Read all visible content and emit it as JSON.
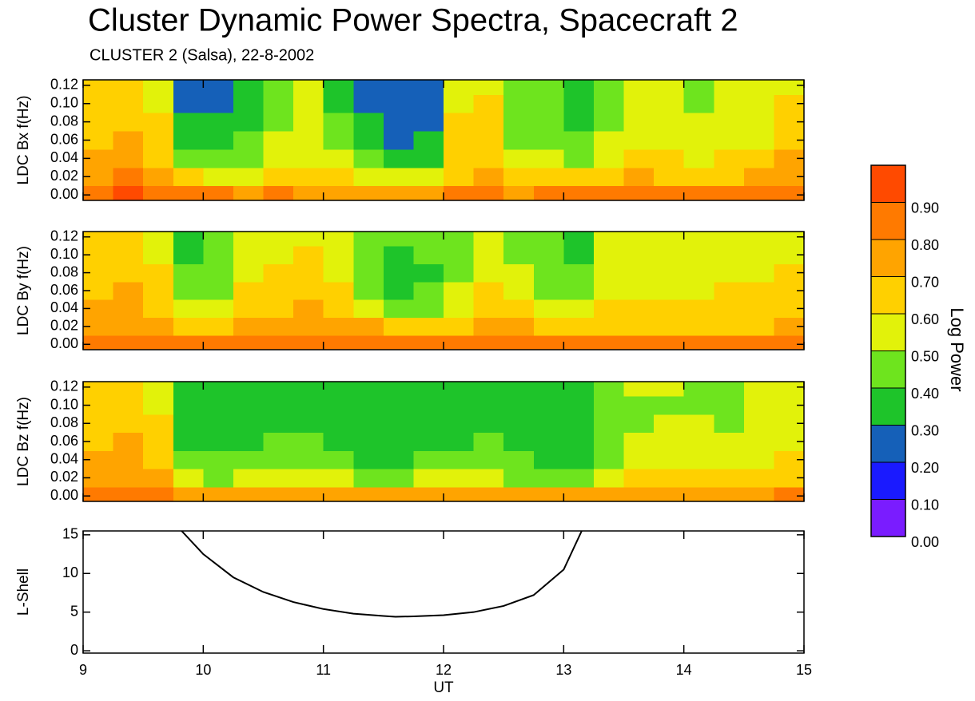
{
  "title": "Cluster Dynamic Power Spectra, Spacecraft 2",
  "subtitle": "CLUSTER 2 (Salsa), 22-8-2002",
  "colorbar": {
    "label": "Log Power",
    "zlim": [
      0,
      1
    ],
    "zticks": [
      {
        "value": 0,
        "label": "0.00"
      },
      {
        "value": 0.1,
        "label": "0.10"
      },
      {
        "value": 0.2,
        "label": "0.20"
      },
      {
        "value": 0.3,
        "label": "0.30"
      },
      {
        "value": 0.4,
        "label": "0.40"
      },
      {
        "value": 0.5,
        "label": "0.50"
      },
      {
        "value": 0.6,
        "label": "0.60"
      },
      {
        "value": 0.7,
        "label": "0.70"
      },
      {
        "value": 0.8,
        "label": "0.80"
      },
      {
        "value": 0.9,
        "label": "0.90"
      }
    ],
    "colors": [
      "#7a1cff",
      "#1a1aff",
      "#1560b8",
      "#1ec42a",
      "#6ee41e",
      "#e2f20a",
      "#ffd000",
      "#ffa400",
      "#ff7a00",
      "#ff4a00"
    ]
  },
  "chart_data": [
    {
      "type": "heatmap",
      "ylabel": "LDC Bx f(Hz)",
      "xlim": [
        9,
        15
      ],
      "xticks": [
        9,
        10,
        11,
        12,
        13,
        14,
        15
      ],
      "ylim": [
        -0.006,
        0.126
      ],
      "yticks": [
        {
          "value": 0,
          "label": "0.00"
        },
        {
          "value": 0.02,
          "label": "0.02"
        },
        {
          "value": 0.04,
          "label": "0.04"
        },
        {
          "value": 0.06,
          "label": "0.06"
        },
        {
          "value": 0.08,
          "label": "0.08"
        },
        {
          "value": 0.1,
          "label": "0.10"
        },
        {
          "value": 0.12,
          "label": "0.12"
        }
      ],
      "xbins": [
        9,
        9.25,
        9.5,
        9.75,
        10,
        10.25,
        10.5,
        10.75,
        11,
        11.25,
        11.5,
        11.75,
        12,
        12.25,
        12.5,
        12.75,
        13,
        13.25,
        13.5,
        13.75,
        14,
        14.25,
        14.5,
        14.75,
        15
      ],
      "ybins": [
        -0.006,
        0.01,
        0.03,
        0.05,
        0.07,
        0.09,
        0.11,
        0.126
      ],
      "values": [
        [
          0.88,
          0.9,
          0.85,
          0.82,
          0.8,
          0.78,
          0.8,
          0.78,
          0.75,
          0.78,
          0.75,
          0.78,
          0.8,
          0.82,
          0.78,
          0.8,
          0.82,
          0.8,
          0.85,
          0.82,
          0.8,
          0.82,
          0.85,
          0.88
        ],
        [
          0.78,
          0.8,
          0.72,
          0.6,
          0.55,
          0.55,
          0.6,
          0.62,
          0.6,
          0.55,
          0.5,
          0.52,
          0.65,
          0.7,
          0.6,
          0.6,
          0.62,
          0.62,
          0.7,
          0.68,
          0.65,
          0.68,
          0.7,
          0.75
        ],
        [
          0.72,
          0.75,
          0.65,
          0.45,
          0.4,
          0.45,
          0.55,
          0.55,
          0.5,
          0.4,
          0.3,
          0.38,
          0.6,
          0.65,
          0.5,
          0.5,
          0.45,
          0.55,
          0.62,
          0.6,
          0.58,
          0.6,
          0.62,
          0.7
        ],
        [
          0.68,
          0.7,
          0.62,
          0.38,
          0.35,
          0.42,
          0.5,
          0.55,
          0.45,
          0.35,
          0.25,
          0.32,
          0.6,
          0.62,
          0.45,
          0.45,
          0.4,
          0.5,
          0.58,
          0.55,
          0.52,
          0.55,
          0.58,
          0.65
        ],
        [
          0.65,
          0.68,
          0.6,
          0.32,
          0.3,
          0.38,
          0.48,
          0.55,
          0.42,
          0.3,
          0.22,
          0.28,
          0.6,
          0.6,
          0.42,
          0.42,
          0.38,
          0.48,
          0.55,
          0.52,
          0.5,
          0.52,
          0.55,
          0.62
        ],
        [
          0.62,
          0.65,
          0.58,
          0.28,
          0.28,
          0.35,
          0.45,
          0.55,
          0.38,
          0.28,
          0.22,
          0.28,
          0.58,
          0.6,
          0.42,
          0.4,
          0.38,
          0.48,
          0.55,
          0.5,
          0.48,
          0.5,
          0.52,
          0.6
        ],
        [
          0.6,
          0.62,
          0.58,
          0.29,
          0.28,
          0.36,
          0.45,
          0.52,
          0.38,
          0.29,
          0.24,
          0.29,
          0.56,
          0.58,
          0.42,
          0.4,
          0.38,
          0.46,
          0.55,
          0.5,
          0.48,
          0.5,
          0.52,
          0.58
        ]
      ]
    },
    {
      "type": "heatmap",
      "ylabel": "LDC By f(Hz)",
      "xlim": [
        9,
        15
      ],
      "xticks": [
        9,
        10,
        11,
        12,
        13,
        14,
        15
      ],
      "ylim": [
        -0.006,
        0.126
      ],
      "yticks": [
        {
          "value": 0,
          "label": "0.00"
        },
        {
          "value": 0.02,
          "label": "0.02"
        },
        {
          "value": 0.04,
          "label": "0.04"
        },
        {
          "value": 0.06,
          "label": "0.06"
        },
        {
          "value": 0.08,
          "label": "0.08"
        },
        {
          "value": 0.1,
          "label": "0.10"
        },
        {
          "value": 0.12,
          "label": "0.12"
        }
      ],
      "xbins": [
        9,
        9.25,
        9.5,
        9.75,
        10,
        10.25,
        10.5,
        10.75,
        11,
        11.25,
        11.5,
        11.75,
        12,
        12.25,
        12.5,
        12.75,
        13,
        13.25,
        13.5,
        13.75,
        14,
        14.25,
        14.5,
        14.75,
        15
      ],
      "ybins": [
        -0.006,
        0.01,
        0.03,
        0.05,
        0.07,
        0.09,
        0.11,
        0.126
      ],
      "values": [
        [
          0.88,
          0.88,
          0.85,
          0.85,
          0.82,
          0.85,
          0.88,
          0.88,
          0.85,
          0.85,
          0.82,
          0.82,
          0.8,
          0.82,
          0.8,
          0.82,
          0.82,
          0.82,
          0.8,
          0.8,
          0.8,
          0.82,
          0.82,
          0.85
        ],
        [
          0.75,
          0.78,
          0.72,
          0.62,
          0.68,
          0.75,
          0.78,
          0.78,
          0.78,
          0.72,
          0.68,
          0.68,
          0.68,
          0.72,
          0.7,
          0.68,
          0.65,
          0.68,
          0.65,
          0.65,
          0.65,
          0.68,
          0.68,
          0.7
        ],
        [
          0.7,
          0.72,
          0.68,
          0.5,
          0.55,
          0.65,
          0.68,
          0.7,
          0.68,
          0.55,
          0.45,
          0.48,
          0.55,
          0.62,
          0.6,
          0.5,
          0.5,
          0.6,
          0.6,
          0.6,
          0.6,
          0.62,
          0.62,
          0.65
        ],
        [
          0.68,
          0.7,
          0.62,
          0.42,
          0.48,
          0.6,
          0.62,
          0.65,
          0.6,
          0.45,
          0.38,
          0.4,
          0.5,
          0.6,
          0.55,
          0.45,
          0.42,
          0.55,
          0.58,
          0.58,
          0.58,
          0.6,
          0.6,
          0.62
        ],
        [
          0.65,
          0.68,
          0.6,
          0.4,
          0.45,
          0.55,
          0.6,
          0.62,
          0.55,
          0.4,
          0.35,
          0.38,
          0.48,
          0.58,
          0.5,
          0.42,
          0.4,
          0.52,
          0.55,
          0.55,
          0.55,
          0.58,
          0.58,
          0.6
        ],
        [
          0.62,
          0.65,
          0.58,
          0.38,
          0.42,
          0.52,
          0.58,
          0.6,
          0.52,
          0.42,
          0.38,
          0.4,
          0.48,
          0.55,
          0.48,
          0.42,
          0.38,
          0.5,
          0.55,
          0.55,
          0.55,
          0.55,
          0.55,
          0.58
        ],
        [
          0.6,
          0.62,
          0.58,
          0.38,
          0.42,
          0.5,
          0.55,
          0.58,
          0.5,
          0.42,
          0.4,
          0.42,
          0.48,
          0.55,
          0.48,
          0.42,
          0.38,
          0.5,
          0.55,
          0.55,
          0.52,
          0.55,
          0.55,
          0.58
        ]
      ]
    },
    {
      "type": "heatmap",
      "ylabel": "LDC Bz f(Hz)",
      "xlim": [
        9,
        15
      ],
      "xticks": [
        9,
        10,
        11,
        12,
        13,
        14,
        15
      ],
      "ylim": [
        -0.006,
        0.126
      ],
      "yticks": [
        {
          "value": 0,
          "label": "0.00"
        },
        {
          "value": 0.02,
          "label": "0.02"
        },
        {
          "value": 0.04,
          "label": "0.04"
        },
        {
          "value": 0.06,
          "label": "0.06"
        },
        {
          "value": 0.08,
          "label": "0.08"
        },
        {
          "value": 0.1,
          "label": "0.10"
        },
        {
          "value": 0.12,
          "label": "0.12"
        }
      ],
      "xbins": [
        9,
        9.25,
        9.5,
        9.75,
        10,
        10.25,
        10.5,
        10.75,
        11,
        11.25,
        11.5,
        11.75,
        12,
        12.25,
        12.5,
        12.75,
        13,
        13.25,
        13.5,
        13.75,
        14,
        14.25,
        14.5,
        14.75,
        15
      ],
      "ybins": [
        -0.006,
        0.01,
        0.03,
        0.05,
        0.07,
        0.09,
        0.11,
        0.126
      ],
      "values": [
        [
          0.85,
          0.88,
          0.82,
          0.72,
          0.72,
          0.75,
          0.78,
          0.75,
          0.75,
          0.72,
          0.72,
          0.75,
          0.75,
          0.78,
          0.75,
          0.72,
          0.72,
          0.75,
          0.75,
          0.75,
          0.75,
          0.75,
          0.78,
          0.8
        ],
        [
          0.75,
          0.78,
          0.7,
          0.5,
          0.48,
          0.5,
          0.55,
          0.52,
          0.5,
          0.45,
          0.45,
          0.5,
          0.5,
          0.55,
          0.48,
          0.42,
          0.45,
          0.5,
          0.6,
          0.6,
          0.6,
          0.6,
          0.62,
          0.65
        ],
        [
          0.7,
          0.72,
          0.65,
          0.42,
          0.4,
          0.42,
          0.45,
          0.42,
          0.4,
          0.38,
          0.38,
          0.4,
          0.42,
          0.45,
          0.42,
          0.35,
          0.38,
          0.42,
          0.55,
          0.55,
          0.55,
          0.55,
          0.55,
          0.6
        ],
        [
          0.68,
          0.7,
          0.62,
          0.38,
          0.35,
          0.38,
          0.4,
          0.4,
          0.38,
          0.35,
          0.35,
          0.38,
          0.38,
          0.4,
          0.38,
          0.35,
          0.35,
          0.4,
          0.5,
          0.52,
          0.52,
          0.5,
          0.52,
          0.58
        ],
        [
          0.65,
          0.68,
          0.6,
          0.35,
          0.35,
          0.36,
          0.38,
          0.38,
          0.36,
          0.32,
          0.33,
          0.35,
          0.36,
          0.38,
          0.36,
          0.35,
          0.36,
          0.4,
          0.48,
          0.5,
          0.5,
          0.48,
          0.5,
          0.55
        ],
        [
          0.62,
          0.65,
          0.58,
          0.35,
          0.34,
          0.35,
          0.36,
          0.38,
          0.36,
          0.32,
          0.32,
          0.34,
          0.36,
          0.36,
          0.36,
          0.35,
          0.36,
          0.4,
          0.48,
          0.48,
          0.48,
          0.48,
          0.5,
          0.55
        ],
        [
          0.62,
          0.65,
          0.58,
          0.32,
          0.32,
          0.34,
          0.35,
          0.36,
          0.35,
          0.3,
          0.3,
          0.32,
          0.34,
          0.35,
          0.35,
          0.35,
          0.35,
          0.4,
          0.5,
          0.5,
          0.48,
          0.48,
          0.5,
          0.55
        ]
      ]
    },
    {
      "type": "line",
      "ylabel": "L-Shell",
      "xlabel": "UT",
      "xlim": [
        9,
        15
      ],
      "xticks": [
        9,
        10,
        11,
        12,
        13,
        14,
        15
      ],
      "ylim": [
        -0.3,
        15.5
      ],
      "yticks": [
        0,
        5,
        10,
        15
      ],
      "color": "#000000",
      "x": [
        9.82,
        10,
        10.25,
        10.5,
        10.75,
        11,
        11.25,
        11.5,
        11.6,
        11.75,
        12,
        12.25,
        12.5,
        12.75,
        13,
        13.15
      ],
      "values": [
        15.5,
        12.5,
        9.5,
        7.6,
        6.3,
        5.4,
        4.8,
        4.5,
        4.4,
        4.45,
        4.6,
        5.0,
        5.8,
        7.2,
        10.5,
        15.5
      ]
    }
  ]
}
